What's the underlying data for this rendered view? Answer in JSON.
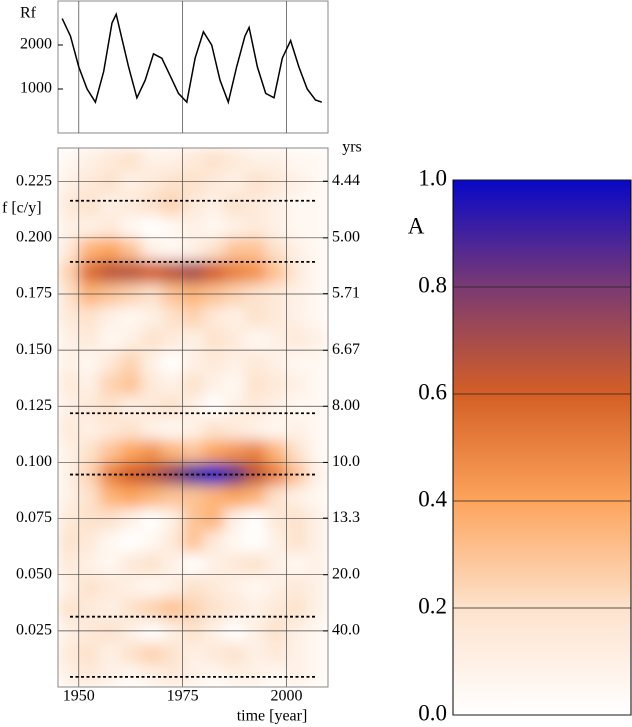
{
  "chart_data": [
    {
      "type": "line",
      "ylabel": "Rf",
      "x": [
        1946,
        1948,
        1950,
        1952,
        1954,
        1956,
        1958,
        1959,
        1960,
        1962,
        1964,
        1966,
        1968,
        1970,
        1972,
        1974,
        1976,
        1978,
        1980,
        1982,
        1984,
        1986,
        1988,
        1990,
        1991,
        1993,
        1995,
        1997,
        1999,
        2001,
        2003,
        2005,
        2007,
        2008.5
      ],
      "values": [
        2600,
        2200,
        1500,
        1000,
        700,
        1400,
        2500,
        2700,
        2300,
        1500,
        800,
        1200,
        1800,
        1700,
        1300,
        900,
        700,
        1700,
        2300,
        2000,
        1200,
        700,
        1500,
        2200,
        2400,
        1500,
        900,
        800,
        1700,
        2100,
        1500,
        1000,
        750,
        700
      ],
      "color": "#000000",
      "xlim": [
        1945,
        2010
      ],
      "xticks": [
        1950,
        1975,
        2000
      ],
      "ylim": [
        0,
        3000
      ],
      "yticks": [
        1000,
        2000
      ],
      "grid": true
    },
    {
      "type": "heatmap",
      "xlabel": "time [year]",
      "ylabel": "f [c/y]",
      "y2label": "yrs",
      "x": [
        1947.5,
        1952.5,
        1957.5,
        1962.5,
        1967.5,
        1972.5,
        1977.5,
        1982.5,
        1987.5,
        1992.5,
        1997.5,
        2002.5,
        2007.5
      ],
      "y": [
        0.005,
        0.015,
        0.025,
        0.035,
        0.045,
        0.055,
        0.065,
        0.075,
        0.085,
        0.095,
        0.105,
        0.115,
        0.125,
        0.135,
        0.145,
        0.155,
        0.165,
        0.175,
        0.185,
        0.195,
        0.205,
        0.215,
        0.225,
        0.235
      ],
      "z": [
        [
          0.1,
          0.15,
          0.1,
          0.05,
          0.1,
          0.15,
          0.1,
          0.05,
          0.1,
          0.1,
          0.05,
          0.1,
          0.05
        ],
        [
          0.15,
          0.2,
          0.1,
          0.2,
          0.25,
          0.2,
          0.1,
          0.15,
          0.2,
          0.1,
          0.15,
          0.1,
          0.05
        ],
        [
          0.1,
          0.15,
          0.2,
          0.1,
          0,
          0.1,
          0.2,
          0.1,
          0,
          0.1,
          0.2,
          0.1,
          0.05
        ],
        [
          0.2,
          0.15,
          0.1,
          0.2,
          0.25,
          0.3,
          0.25,
          0.2,
          0.15,
          0.1,
          0.15,
          0.2,
          0.1
        ],
        [
          0.1,
          0.2,
          0.15,
          0.1,
          0.05,
          0.1,
          0.2,
          0.15,
          0.1,
          0.05,
          0.1,
          0.15,
          0.1
        ],
        [
          0.15,
          0.1,
          0.05,
          0.15,
          0.2,
          0.1,
          0,
          0.1,
          0.15,
          0.2,
          0.1,
          0.05,
          0.1
        ],
        [
          0.2,
          0.15,
          0.05,
          0,
          0.05,
          0.15,
          0.3,
          0.15,
          0.05,
          0,
          0.1,
          0.2,
          0.1
        ],
        [
          0.15,
          0.2,
          0.2,
          0.1,
          0,
          0.1,
          0.3,
          0.35,
          0.1,
          0,
          0.15,
          0.2,
          0.1
        ],
        [
          0.1,
          0.2,
          0.35,
          0.4,
          0.35,
          0.3,
          0.3,
          0.35,
          0.4,
          0.35,
          0.2,
          0.1,
          0.05
        ],
        [
          0.1,
          0.25,
          0.5,
          0.6,
          0.65,
          0.75,
          0.9,
          1.0,
          0.85,
          0.65,
          0.5,
          0.3,
          0.1
        ],
        [
          0.1,
          0.2,
          0.3,
          0.4,
          0.45,
          0.35,
          0.3,
          0.4,
          0.45,
          0.5,
          0.35,
          0.2,
          0.05
        ],
        [
          0.15,
          0.1,
          0.15,
          0.2,
          0.1,
          0.05,
          0.1,
          0.2,
          0.15,
          0.1,
          0.05,
          0.1,
          0.05
        ],
        [
          0.1,
          0.15,
          0.2,
          0.1,
          0.15,
          0.2,
          0.1,
          0,
          0.1,
          0.15,
          0.1,
          0.05,
          0.05
        ],
        [
          0.15,
          0.1,
          0.25,
          0.3,
          0.15,
          0.1,
          0.2,
          0.1,
          0.05,
          0.2,
          0.15,
          0.1,
          0.05
        ],
        [
          0.1,
          0.05,
          0.15,
          0.25,
          0.1,
          0,
          0.1,
          0.15,
          0.1,
          0.15,
          0.1,
          0.05,
          0.05
        ],
        [
          0.1,
          0.15,
          0.05,
          0.1,
          0.2,
          0.15,
          0.1,
          0.2,
          0.15,
          0.05,
          0.1,
          0.15,
          0.1
        ],
        [
          0.15,
          0.2,
          0.1,
          0.05,
          0.1,
          0.2,
          0.25,
          0.15,
          0.1,
          0.2,
          0.15,
          0.1,
          0.05
        ],
        [
          0.2,
          0.35,
          0.3,
          0.25,
          0.2,
          0.3,
          0.35,
          0.3,
          0.25,
          0.2,
          0.15,
          0.1,
          0.05
        ],
        [
          0.25,
          0.55,
          0.65,
          0.65,
          0.6,
          0.65,
          0.7,
          0.6,
          0.5,
          0.45,
          0.3,
          0.15,
          0.05
        ],
        [
          0.15,
          0.35,
          0.4,
          0.3,
          0.1,
          0.05,
          0.1,
          0.2,
          0.3,
          0.3,
          0.2,
          0.1,
          0.05
        ],
        [
          0.1,
          0.1,
          0.15,
          0.05,
          0,
          0.05,
          0.1,
          0.05,
          0.1,
          0.15,
          0.1,
          0.05,
          0.05
        ],
        [
          0.15,
          0.2,
          0.1,
          0.15,
          0.2,
          0.25,
          0.15,
          0.1,
          0.2,
          0.15,
          0.1,
          0.05,
          0.05
        ],
        [
          0.1,
          0.15,
          0.2,
          0.1,
          0.15,
          0.2,
          0.2,
          0.15,
          0.1,
          0.2,
          0.15,
          0.1,
          0.05
        ],
        [
          0.05,
          0.1,
          0.15,
          0.2,
          0.1,
          0.1,
          0.15,
          0.2,
          0.15,
          0.1,
          0.1,
          0.05,
          0.05
        ]
      ],
      "hlines": [
        0.2165,
        0.1893,
        0.1219,
        0.0946,
        0.0313,
        0.0045
      ],
      "xlim": [
        1945,
        2010
      ],
      "xticks": [
        1950,
        1975,
        2000
      ],
      "ylim": [
        0,
        0.24
      ],
      "yticks": [
        0.025,
        {
          "value": 0.05,
          "label": "0.050"
        },
        0.075,
        {
          "value": 0.1,
          "label": "0.100"
        },
        0.125,
        {
          "value": 0.15,
          "label": "0.150"
        },
        0.175,
        {
          "value": 0.2,
          "label": "0.200"
        },
        0.225
      ],
      "y2scale": "reciprocal",
      "y2ticks": [
        {
          "value": 40,
          "label": "40.0"
        },
        13.3,
        {
          "value": 20,
          "label": "20.0"
        },
        {
          "value": 10,
          "label": "10.0"
        },
        {
          "value": 8,
          "label": "8.00"
        },
        6.67,
        5.71,
        {
          "value": 5,
          "label": "5.00"
        },
        4.44
      ],
      "grid": true
    },
    {
      "type": "colorbar",
      "label": "A",
      "colors": [
        "#ffffff",
        "#fde2cc",
        "#fda45c",
        "#d45f25",
        "#7b3a73",
        "#0808c8"
      ],
      "ylim": [
        0,
        1
      ],
      "yticks": [
        {
          "value": 0,
          "label": "0.0"
        },
        0.2,
        0.4,
        0.6,
        0.8,
        {
          "value": 1,
          "label": "1.0"
        }
      ],
      "grid": true
    }
  ]
}
